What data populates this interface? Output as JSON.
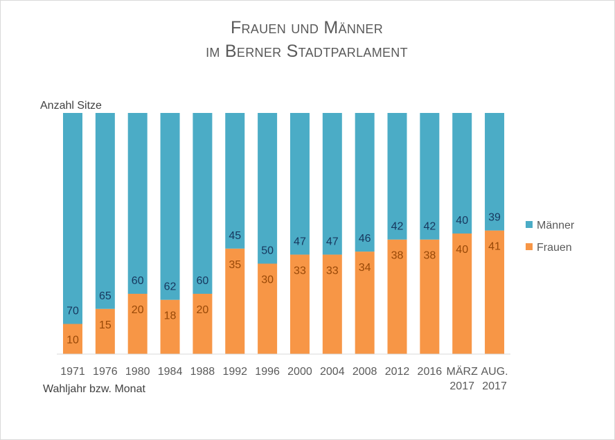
{
  "chart_data": {
    "type": "bar",
    "stacked": true,
    "title": [
      "Frauen und Männer",
      "im Berner Stadtparlament"
    ],
    "ylabel": "Anzahl Sitze",
    "xlabel": "Wahljahr bzw. Monat",
    "categories": [
      [
        "1971"
      ],
      [
        "1976"
      ],
      [
        "1980"
      ],
      [
        "1984"
      ],
      [
        "1988"
      ],
      [
        "1992"
      ],
      [
        "1996"
      ],
      [
        "2000"
      ],
      [
        "2004"
      ],
      [
        "2008"
      ],
      [
        "2012"
      ],
      [
        "2016"
      ],
      [
        "MÄRZ",
        "2017"
      ],
      [
        "AUG.",
        "2017"
      ]
    ],
    "series": [
      {
        "name": "Frauen",
        "color": "#F79646",
        "label_color": "#984807",
        "values": [
          10,
          15,
          20,
          18,
          20,
          35,
          30,
          33,
          33,
          34,
          38,
          38,
          40,
          41
        ]
      },
      {
        "name": "Männer",
        "color": "#4BACC6",
        "label_color": "#17375E",
        "values": [
          70,
          65,
          60,
          62,
          60,
          45,
          50,
          47,
          47,
          46,
          42,
          42,
          40,
          39
        ]
      }
    ],
    "ylim": [
      0,
      80
    ],
    "legend_position": "right",
    "grid": false
  }
}
